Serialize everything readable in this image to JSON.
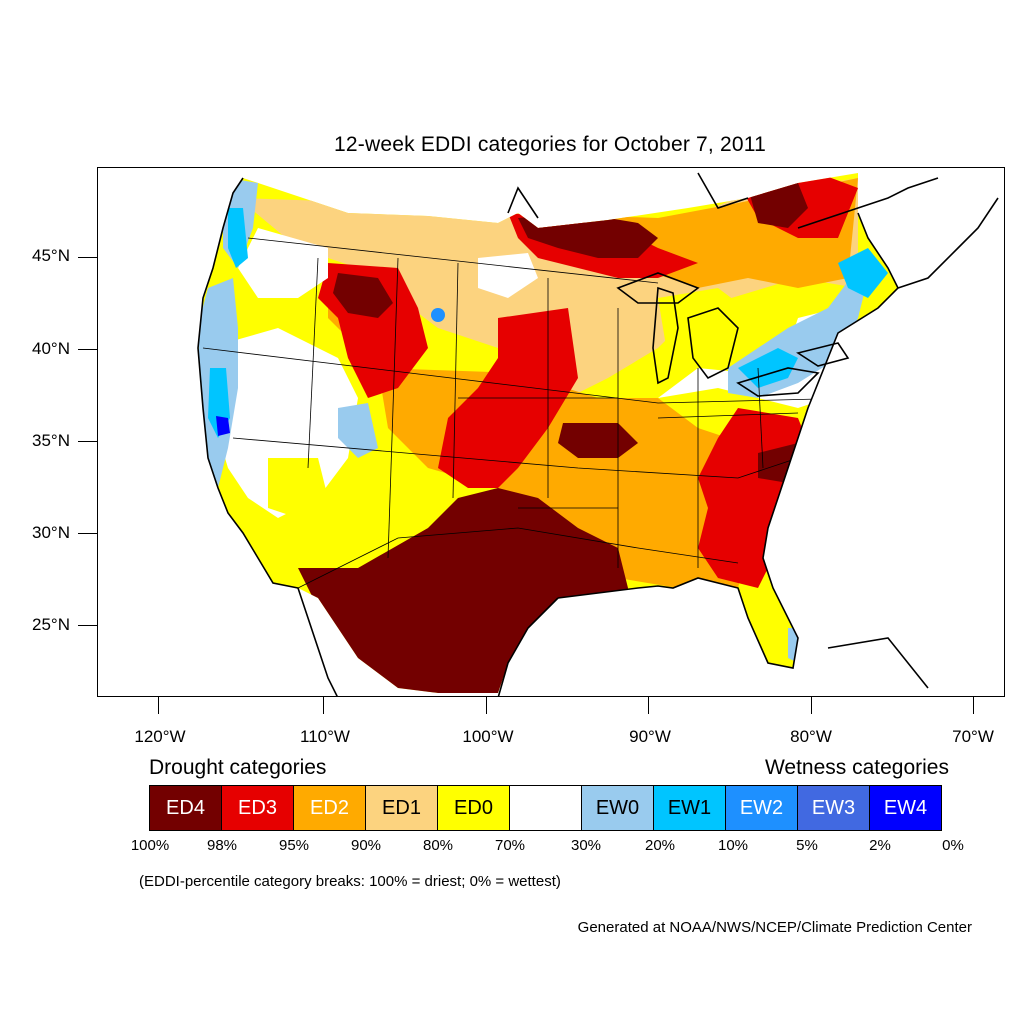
{
  "title": "12-week EDDI categories for October 7, 2011",
  "lat_labels": [
    "45°N",
    "40°N",
    "35°N",
    "30°N",
    "25°N"
  ],
  "lon_labels": [
    "120°W",
    "110°W",
    "100°W",
    "90°W",
    "80°W",
    "70°W"
  ],
  "legend": {
    "drought_heading": "Drought categories",
    "wetness_heading": "Wetness categories",
    "categories": [
      {
        "label": "ED4",
        "color": "#730000",
        "text_color": "#ffffff"
      },
      {
        "label": "ED3",
        "color": "#e60000",
        "text_color": "#ffffff"
      },
      {
        "label": "ED2",
        "color": "#ffaa00",
        "text_color": "#ffffff"
      },
      {
        "label": "ED1",
        "color": "#fcd37f",
        "text_color": "#000000"
      },
      {
        "label": "ED0",
        "color": "#ffff00",
        "text_color": "#000000"
      },
      {
        "label": "",
        "color": "#ffffff",
        "text_color": "#000000"
      },
      {
        "label": "EW0",
        "color": "#99cbee",
        "text_color": "#000000"
      },
      {
        "label": "EW1",
        "color": "#00c5ff",
        "text_color": "#000000"
      },
      {
        "label": "EW2",
        "color": "#1e90ff",
        "text_color": "#ffffff"
      },
      {
        "label": "EW3",
        "color": "#4169e1",
        "text_color": "#ffffff"
      },
      {
        "label": "EW4",
        "color": "#0000ff",
        "text_color": "#ffffff"
      }
    ],
    "breaks": [
      "100%",
      "98%",
      "95%",
      "90%",
      "80%",
      "70%",
      "30%",
      "20%",
      "10%",
      "5%",
      "2%",
      "0%"
    ]
  },
  "note": "(EDDI-percentile category breaks: 100% = driest; 0% = wettest)",
  "credit": "Generated at NOAA/NWS/NCEP/Climate Prediction Center"
}
